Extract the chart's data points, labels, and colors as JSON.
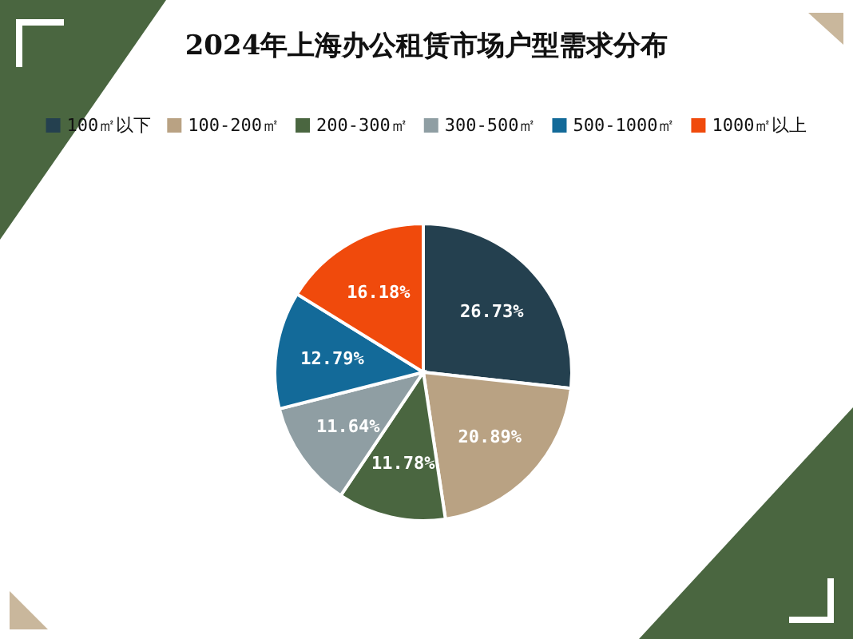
{
  "chart_data": {
    "type": "pie",
    "title": "2024年上海办公租赁市场户型需求分布",
    "categories": [
      "100㎡以下",
      "100-200㎡",
      "200-300㎡",
      "300-500㎡",
      "500-1000㎡",
      "1000㎡以上"
    ],
    "values": [
      26.73,
      20.89,
      11.78,
      11.64,
      12.79,
      16.18
    ],
    "value_labels": [
      "26.73%",
      "20.89%",
      "11.78%",
      "11.64%",
      "12.79%",
      "16.18%"
    ],
    "colors": [
      "#24404f",
      "#b9a283",
      "#4a6640",
      "#8f9ea3",
      "#136a99",
      "#f04a0c"
    ],
    "legend": "top"
  }
}
